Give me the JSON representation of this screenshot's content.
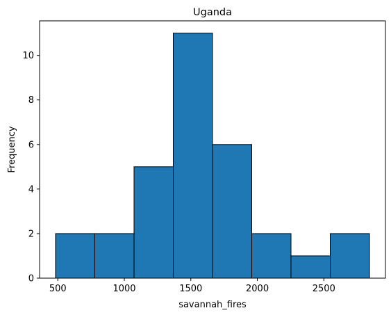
{
  "chart_data": {
    "type": "bar",
    "title": "Uganda",
    "xlabel": "savannah_fires",
    "ylabel": "Frequency",
    "bin_edges": [
      483,
      778,
      1073,
      1368,
      1663,
      1958,
      2253,
      2548,
      2843
    ],
    "values": [
      2,
      2,
      5,
      11,
      6,
      2,
      1,
      2
    ],
    "xlim": [
      363,
      2963
    ],
    "ylim": [
      0,
      11.55
    ],
    "xticks": [
      500,
      1000,
      1500,
      2000,
      2500
    ],
    "yticks": [
      0,
      2,
      4,
      6,
      8,
      10
    ],
    "bar_color": "#1f77b4",
    "edge_color": "#000000",
    "grid": false
  }
}
